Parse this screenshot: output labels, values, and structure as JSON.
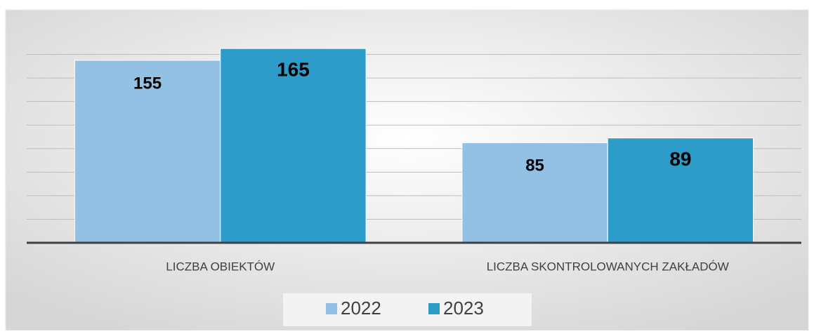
{
  "chart_data": {
    "type": "bar",
    "categories": [
      "LICZBA OBIEKTÓW",
      "LICZBA SKONTROLOWANYCH ZAKŁADÓW"
    ],
    "series": [
      {
        "name": "2022",
        "color": "#93c1e3",
        "values": [
          155,
          85
        ]
      },
      {
        "name": "2023",
        "color": "#2e9cc8",
        "values": [
          165,
          89
        ]
      }
    ],
    "ylim": [
      0,
      180
    ],
    "yticks": [
      0,
      20,
      40,
      60,
      80,
      100,
      120,
      140,
      160
    ],
    "grid": true,
    "legend": "bottom"
  }
}
